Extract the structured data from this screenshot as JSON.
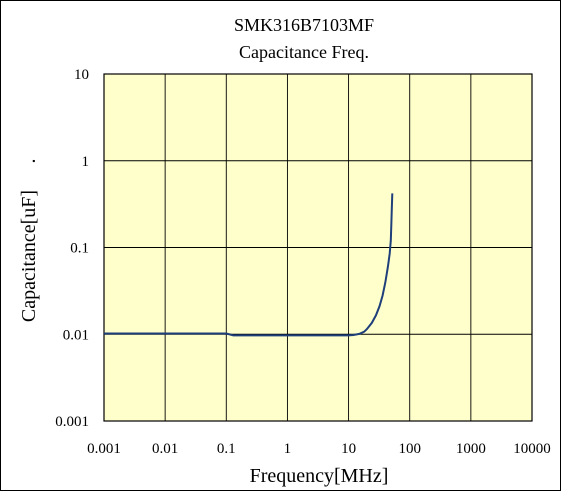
{
  "chart_data": {
    "type": "line",
    "title": "SMK316B7103MF",
    "subtitle": "Capacitance Freq.",
    "xlabel": "Frequency[MHz]",
    "ylabel": "Capacitance[uF]",
    "ylabel_suffix": ".",
    "x_scale": "log",
    "y_scale": "log",
    "xlim": [
      0.001,
      10000
    ],
    "ylim": [
      0.001,
      10
    ],
    "x_ticks": [
      0.001,
      0.01,
      0.1,
      1,
      10,
      100,
      1000,
      10000
    ],
    "x_tick_labels": [
      "0.001",
      "0.01",
      "0.1",
      "1",
      "10",
      "100",
      "1000",
      "10000"
    ],
    "y_ticks": [
      0.001,
      0.01,
      0.1,
      1,
      10
    ],
    "y_tick_labels": [
      "0.001",
      "0.01",
      "0.1",
      "1",
      "10"
    ],
    "grid": true,
    "legend": "none",
    "colors": {
      "plot_background": "#ffffcc",
      "line": "#1f3f7a",
      "grid": "#000000"
    },
    "series": [
      {
        "x": [
          0.001,
          0.1,
          0.13,
          1,
          10,
          12,
          15,
          18,
          20,
          24,
          28,
          32,
          36,
          40,
          44,
          47,
          49,
          50,
          51,
          52
        ],
        "y": [
          0.0102,
          0.0102,
          0.0097,
          0.0097,
          0.0097,
          0.0098,
          0.0101,
          0.0107,
          0.0115,
          0.0135,
          0.0165,
          0.021,
          0.028,
          0.04,
          0.06,
          0.085,
          0.12,
          0.18,
          0.28,
          0.42
        ]
      }
    ]
  }
}
